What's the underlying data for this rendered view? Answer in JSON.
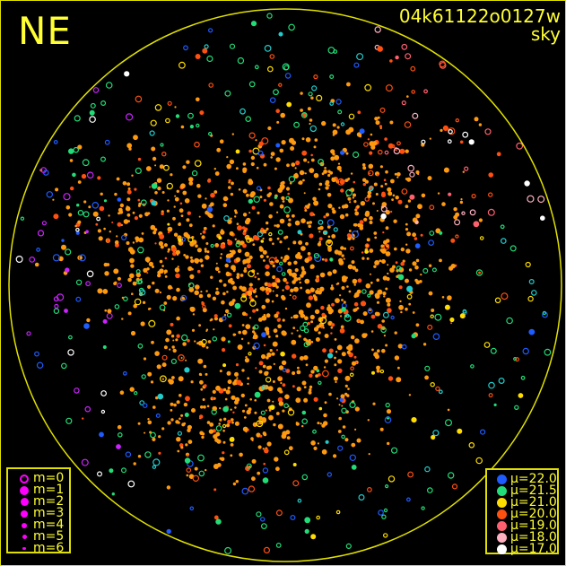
{
  "direction_label": "NE",
  "image_id": "04k61122o0127w",
  "image_type": "sky",
  "colors": {
    "frame": "#e0e000",
    "text": "#ffff33",
    "cloud": "#ff9a10",
    "magnitude_symbol": "#ff00ff"
  },
  "magnitude_legend": [
    {
      "label": "m=0",
      "symbol": "ring"
    },
    {
      "label": "m=1",
      "symbol": "dot"
    },
    {
      "label": "m=2",
      "symbol": "dot"
    },
    {
      "label": "m=3",
      "symbol": "dot"
    },
    {
      "label": "m=4",
      "symbol": "dot"
    },
    {
      "label": "m=5",
      "symbol": "dot"
    },
    {
      "label": "m=6",
      "symbol": "dot"
    }
  ],
  "brightness_legend": [
    {
      "label": "μ=22.0",
      "color": "#1e5cff"
    },
    {
      "label": "μ=21.5",
      "color": "#22dd77"
    },
    {
      "label": "μ=21.0",
      "color": "#ffdd00"
    },
    {
      "label": "μ=20.0",
      "color": "#ff5010"
    },
    {
      "label": "μ=19.0",
      "color": "#ff6070"
    },
    {
      "label": "μ=18.0",
      "color": "#ffb0c0"
    },
    {
      "label": "μ=17.0",
      "color": "#ffffff"
    }
  ]
}
